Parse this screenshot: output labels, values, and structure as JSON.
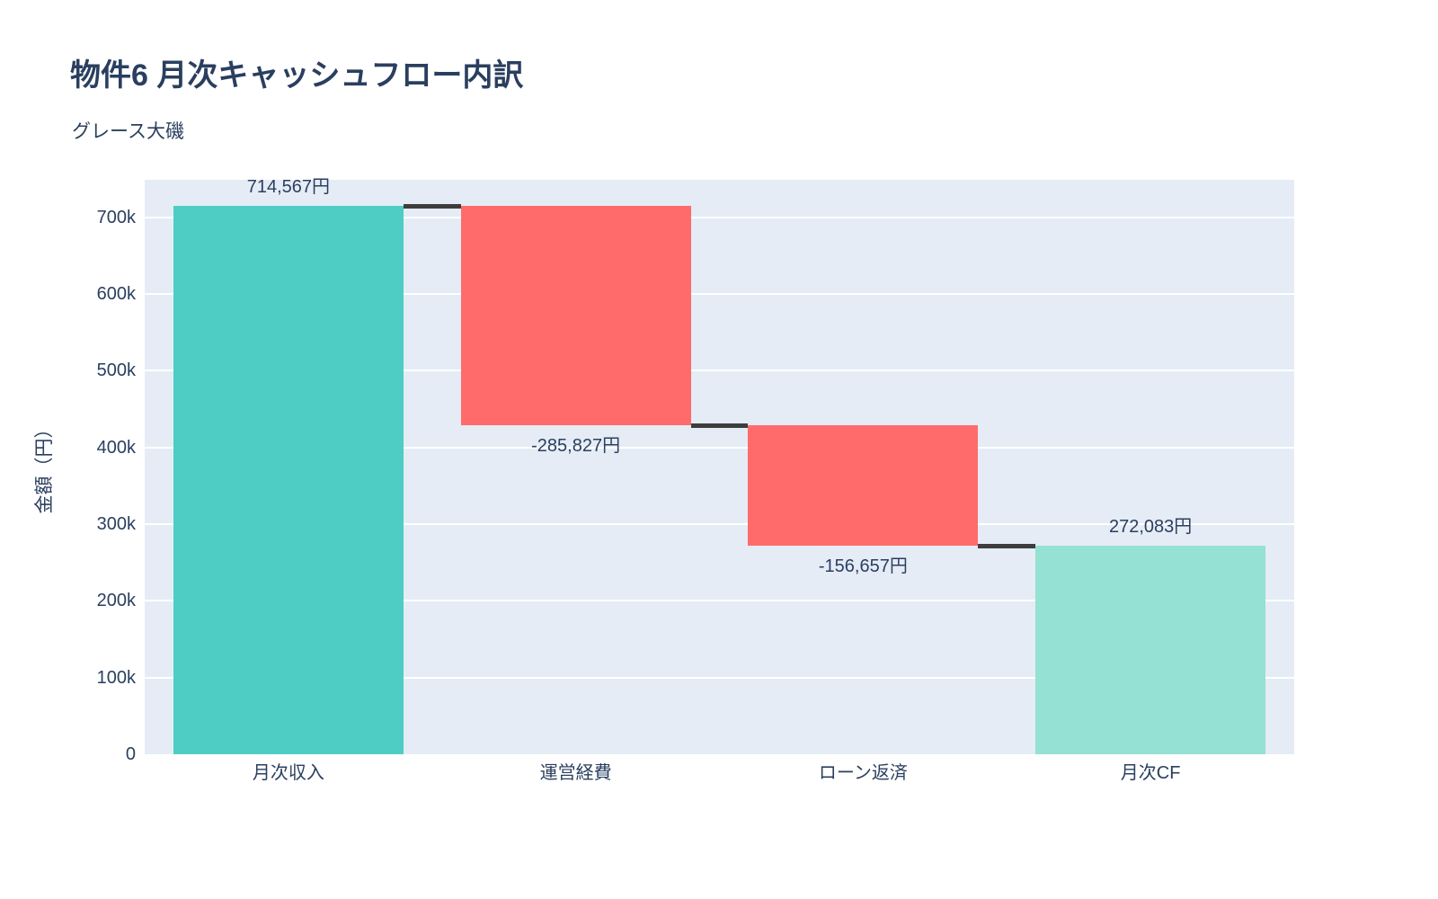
{
  "header": {
    "title": "物件6 月次キャッシュフロー内訳",
    "subtitle": "グレース大磯"
  },
  "chart_data": {
    "type": "waterfall",
    "title": "物件6 月次キャッシュフロー内訳",
    "subtitle": "グレース大磯",
    "categories": [
      "月次収入",
      "運営経費",
      "ローン返済",
      "月次CF"
    ],
    "values": [
      714567,
      -285827,
      -156657,
      272083
    ],
    "measures": [
      "relative",
      "relative",
      "relative",
      "total"
    ],
    "labels": [
      "714,567円",
      "-285,827円",
      "-156,657円",
      "272,083円"
    ],
    "label_positions": [
      "outside-top",
      "outside-bottom",
      "outside-bottom",
      "outside-top"
    ],
    "xlabel": "",
    "ylabel": "金額（円）",
    "ylim": [
      0,
      749000
    ],
    "yticks": [
      {
        "value": 0,
        "label": "0"
      },
      {
        "value": 100000,
        "label": "100k"
      },
      {
        "value": 200000,
        "label": "200k"
      },
      {
        "value": 300000,
        "label": "300k"
      },
      {
        "value": 400000,
        "label": "400k"
      },
      {
        "value": 500000,
        "label": "500k"
      },
      {
        "value": 600000,
        "label": "600k"
      },
      {
        "value": 700000,
        "label": "700k"
      }
    ],
    "grid": true,
    "legend": false,
    "colors": {
      "increasing": "#4ECDC4",
      "decreasing": "#FF6B6B",
      "total": "#95E1D3",
      "connector": "#3D3D3D",
      "plot_bg": "#E5ECF6",
      "grid": "#FFFFFF",
      "text": "#2A3F5F"
    }
  }
}
